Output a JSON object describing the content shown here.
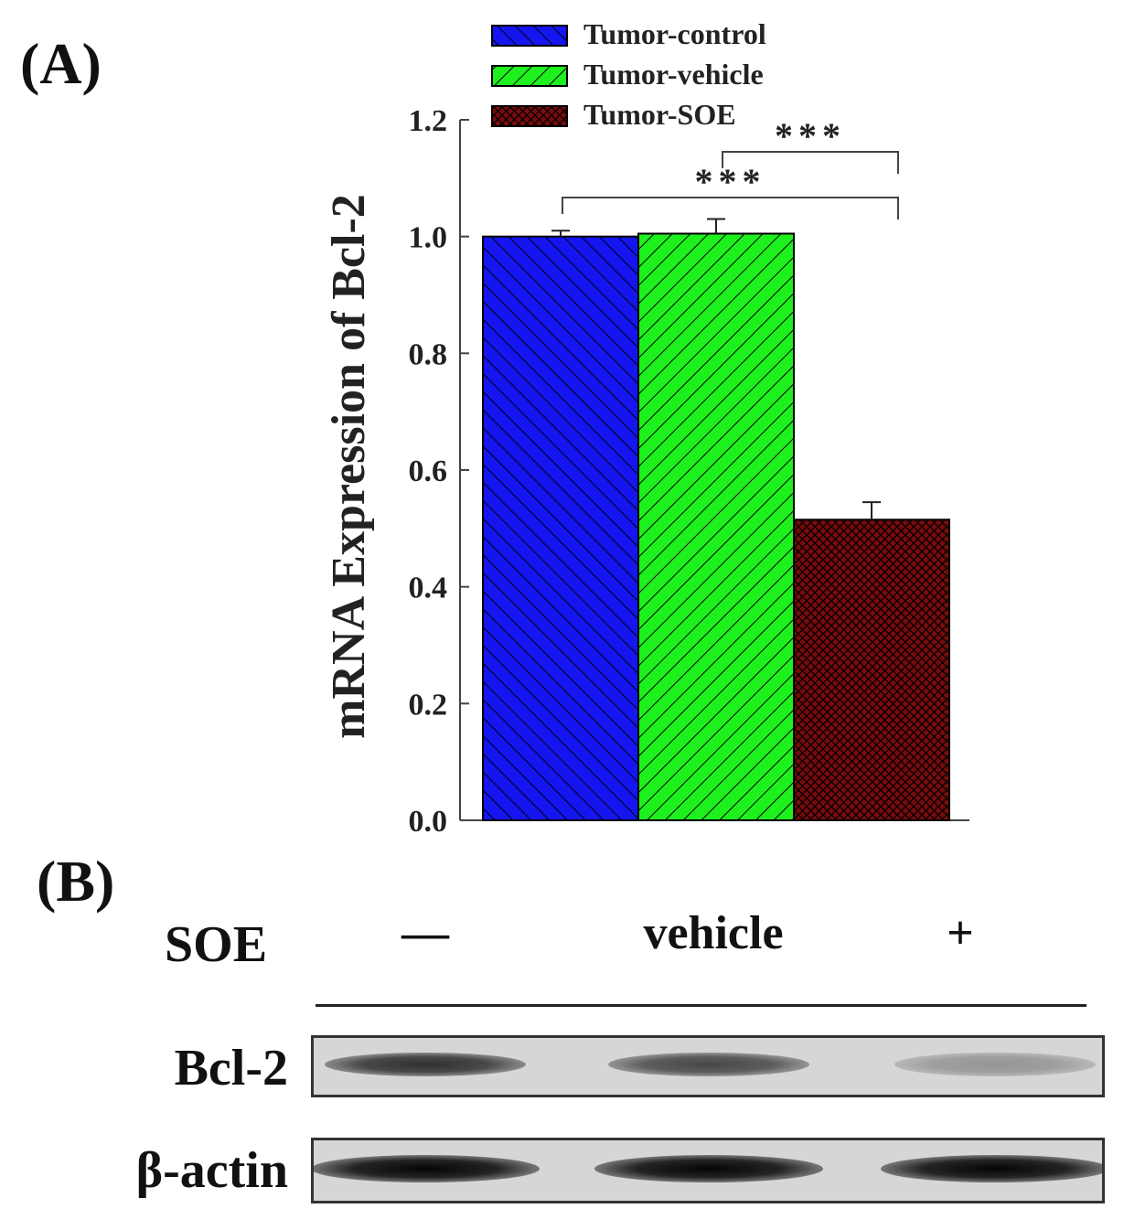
{
  "panel_a_label": "(A)",
  "panel_b_label": "(B)",
  "chart_data": {
    "type": "bar",
    "title": "",
    "xlabel": "",
    "ylabel": "mRNA Expression of Bcl-2",
    "ylim": [
      0,
      1.2
    ],
    "yticks": [
      "0.0",
      "0.2",
      "0.4",
      "0.6",
      "0.8",
      "1.0",
      "1.2"
    ],
    "grid": false,
    "legend_position": "top",
    "series": [
      {
        "name": "Tumor-control",
        "value": 1.0,
        "error": 0.01,
        "color": "#1515f0",
        "pattern": "hatch-back"
      },
      {
        "name": "Tumor-vehicle",
        "value": 1.005,
        "error": 0.025,
        "color": "#1ef01e",
        "pattern": "hatch-forward"
      },
      {
        "name": "Tumor-SOE",
        "value": 0.515,
        "error": 0.03,
        "color": "#7a0c0c",
        "pattern": "crosshatch"
      }
    ],
    "annotations": [
      {
        "from": 1,
        "to": 2,
        "label": "***"
      },
      {
        "from": 0,
        "to": 2,
        "label": "***"
      }
    ]
  },
  "blot": {
    "row_header": "SOE",
    "lanes": [
      "—",
      "vehicle",
      "+"
    ],
    "rows": [
      {
        "label": "Bcl-2",
        "intensities": [
          0.78,
          0.66,
          0.26
        ]
      },
      {
        "label": "β-actin",
        "intensities": [
          1.0,
          1.0,
          1.0
        ]
      }
    ]
  }
}
